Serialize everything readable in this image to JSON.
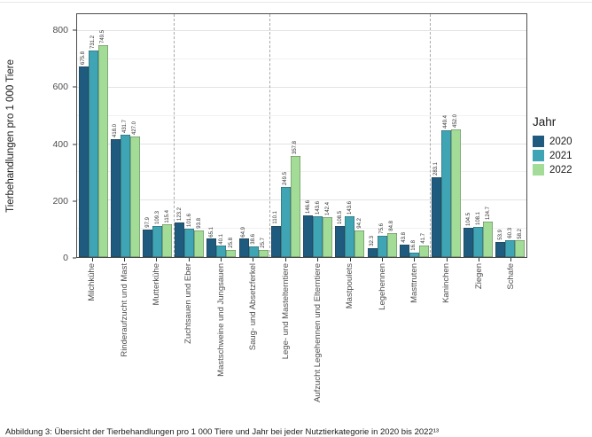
{
  "figure": {
    "y_axis_title": "Tierbehandlungen pro 1 000 Tiere",
    "caption": "Abbildung 3: Übersicht der Tierbehandlungen pro 1 000 Tiere und Jahr bei jeder Nutztierkategorie in 2020 bis 2022¹³"
  },
  "legend": {
    "title": "Jahr",
    "items": [
      {
        "label": "2020",
        "color": "#1f5b7e"
      },
      {
        "label": "2021",
        "color": "#3fa5b4"
      },
      {
        "label": "2022",
        "color": "#a3dc96"
      }
    ]
  },
  "chart_data": {
    "type": "bar",
    "title": "",
    "xlabel": "",
    "ylabel": "Tierbehandlungen pro 1 000 Tiere",
    "ylim": [
      0,
      860
    ],
    "yticks": [
      0,
      200,
      400,
      600,
      800
    ],
    "yticks_minor": [
      100,
      300,
      500,
      700
    ],
    "grid": true,
    "legend_title": "Jahr",
    "legend_position": "right",
    "bar_value_labels": true,
    "value_label_decimals": 1,
    "categories": [
      "Milchkühe",
      "Rinderaufzucht und Mast",
      "Mutterkühe",
      "Zuchtsauen und Eber",
      "Mastschweine und Jungsauen",
      "Saug- und Absetzferkel",
      "Lege- und Mastelterntiere",
      "Aufzucht Legehennen und Elterntiere",
      "Mastpoulets",
      "Legehennen",
      "Masttruten",
      "Kaninchen",
      "Ziegen",
      "Schafe"
    ],
    "group_separators_after_index": [
      2,
      5,
      10
    ],
    "series": [
      {
        "name": "2020",
        "color": "#1f5b7e",
        "values": [
          675.8,
          418.0,
          97.9,
          123.2,
          65.1,
          64.9,
          110.1,
          146.6,
          108.5,
          32.3,
          43.8,
          283.1,
          104.5,
          53.9
        ]
      },
      {
        "name": "2021",
        "color": "#3fa5b4",
        "values": [
          731.2,
          431.7,
          109.3,
          101.6,
          40.1,
          38.6,
          249.5,
          143.6,
          143.6,
          75.6,
          16.8,
          449.4,
          108.1,
          60.3
        ]
      },
      {
        "name": "2022",
        "color": "#a3dc96",
        "values": [
          749.5,
          427.0,
          115.4,
          93.8,
          25.8,
          25.7,
          357.8,
          142.4,
          94.2,
          84.8,
          41.7,
          452.0,
          124.7,
          58.2
        ]
      }
    ]
  }
}
